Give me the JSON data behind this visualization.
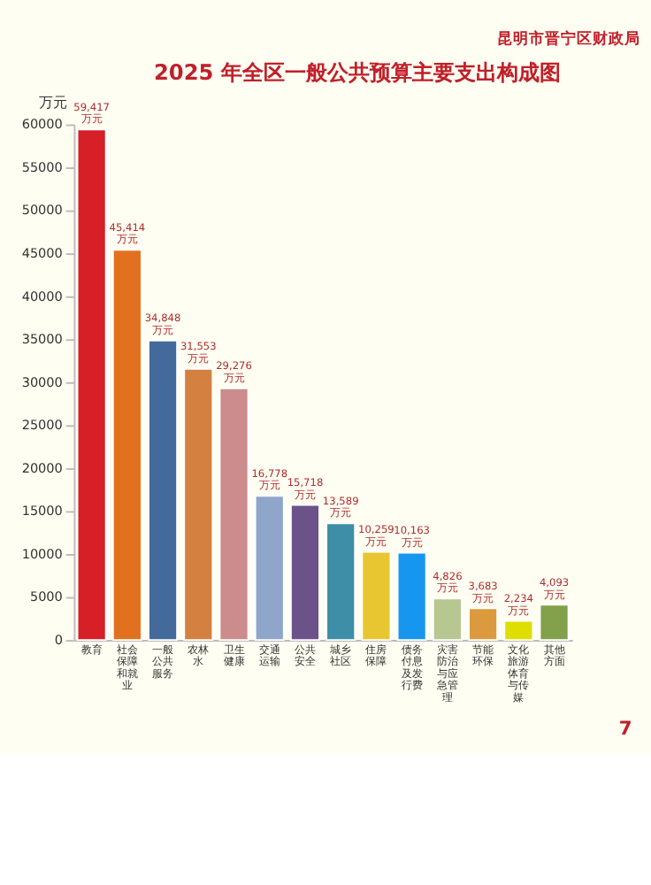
{
  "chart_data": {
    "type": "bar",
    "title": "2025 年全区一般公共预算主要支出构成图",
    "ylabel": "万元",
    "annotations": [
      "昆明市晋宁区财政局",
      "7"
    ],
    "categories": [
      "教育",
      "社会保障和就业",
      "一般公共服务",
      "农林水",
      "卫生健康",
      "交通运输",
      "公共安全",
      "城乡社区",
      "住房保障",
      "债务付息及发行费",
      "灾害防治与应急管理",
      "节能环保",
      "文化旅游体育与传媒",
      "其他方面"
    ],
    "values": [
      59417,
      45414,
      34848,
      31553,
      29276,
      16778,
      15718,
      13589,
      10259,
      10163,
      4826,
      3683,
      2234,
      4093
    ],
    "value_labels": [
      "59,417\n万元",
      "45,414\n万元",
      "34,848\n万元",
      "31,553\n万元",
      "29,276\n万元",
      "16,778\n万元",
      "15,718\n万元",
      "13,589\n万元",
      "10,259\n万元",
      "10,163\n万元",
      "4,826\n万元",
      "3,683\n万元",
      "2,234\n万元",
      "4,093\n万元"
    ],
    "colors": [
      "#d61f26",
      "#e2711f",
      "#436a9b",
      "#d48040",
      "#cc8b8c",
      "#8fa5c9",
      "#6b5289",
      "#3d8ea6",
      "#e8c631",
      "#1796f0",
      "#b7c78f",
      "#dc9a3e",
      "#dede00",
      "#83a04a"
    ],
    "ylim": [
      0,
      60000
    ],
    "yticks": [
      0,
      5000,
      10000,
      15000,
      20000,
      25000,
      30000,
      35000,
      40000,
      45000,
      50000,
      55000,
      60000
    ],
    "grid": false
  }
}
